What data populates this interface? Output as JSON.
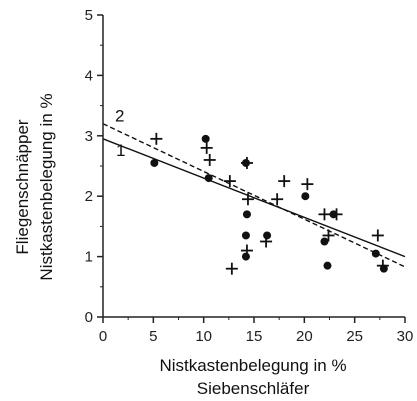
{
  "chart_data": {
    "type": "scatter",
    "xlabel": [
      "Nistkastenbelegung in %",
      "Siebenschläfer"
    ],
    "ylabel": [
      "Fliegenschnäpper",
      "Nistkastenbelegung in %"
    ],
    "xlim": [
      0,
      30
    ],
    "ylim": [
      0,
      5
    ],
    "x_ticks": [
      "0",
      "5",
      "10",
      "15",
      "20",
      "25",
      "30"
    ],
    "y_ticks": [
      "0",
      "1",
      "2",
      "3",
      "4",
      "5"
    ],
    "grid": false,
    "series": [
      {
        "marker": "circle",
        "points": [
          [
            5.1,
            2.55
          ],
          [
            10.2,
            2.95
          ],
          [
            10.5,
            2.3
          ],
          [
            14.2,
            2.55
          ],
          [
            14.3,
            1.7
          ],
          [
            14.2,
            1.35
          ],
          [
            14.2,
            1.0
          ],
          [
            16.3,
            1.35
          ],
          [
            20.1,
            2.0
          ],
          [
            22.0,
            1.25
          ],
          [
            22.3,
            0.85
          ],
          [
            22.9,
            1.7
          ],
          [
            27.1,
            1.05
          ],
          [
            27.9,
            0.8
          ]
        ]
      },
      {
        "marker": "plus",
        "points": [
          [
            5.3,
            2.95
          ],
          [
            10.3,
            2.8
          ],
          [
            10.6,
            2.6
          ],
          [
            12.6,
            2.25
          ],
          [
            12.8,
            0.8
          ],
          [
            14.3,
            2.55
          ],
          [
            14.4,
            1.95
          ],
          [
            14.3,
            1.1
          ],
          [
            16.2,
            1.25
          ],
          [
            17.3,
            1.95
          ],
          [
            18.0,
            2.25
          ],
          [
            20.3,
            2.2
          ],
          [
            22.0,
            1.7
          ],
          [
            22.4,
            1.35
          ],
          [
            23.2,
            1.7
          ],
          [
            27.3,
            1.35
          ],
          [
            27.8,
            0.85
          ]
        ]
      }
    ],
    "regression_lines": [
      {
        "label": "1",
        "style": "solid",
        "x": [
          0,
          30
        ],
        "y": [
          2.95,
          1.0
        ]
      },
      {
        "label": "2",
        "style": "dashed",
        "x": [
          0,
          30
        ],
        "y": [
          3.2,
          0.83
        ]
      }
    ],
    "colors": {
      "marks": "#111111",
      "axis": "#222222"
    }
  }
}
